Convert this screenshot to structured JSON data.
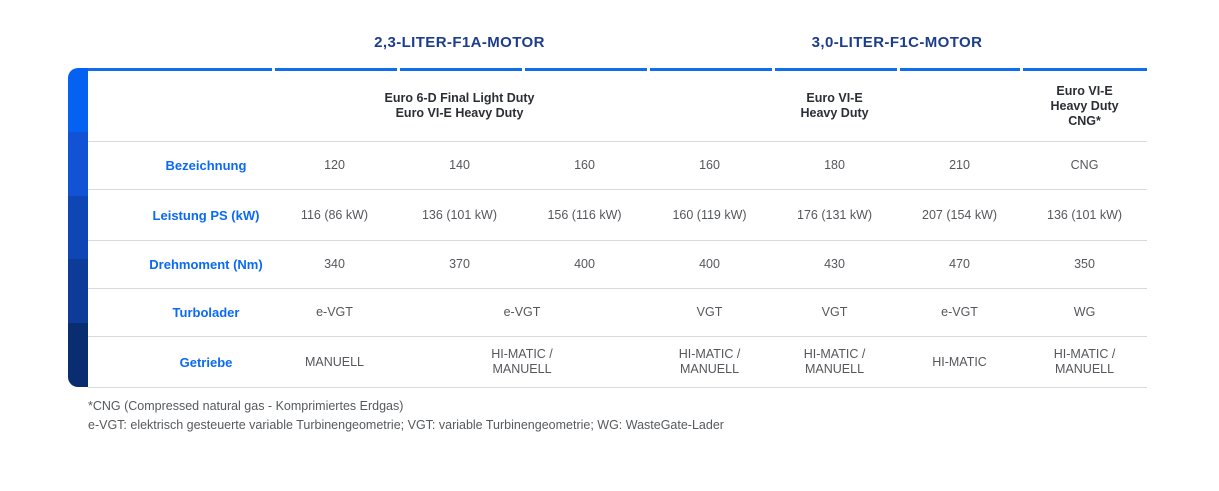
{
  "colors": {
    "accent_blue_border": "#116df0",
    "engine_title_navy": "#1c3c8c",
    "row_label_blue": "#0a6af2",
    "data_text_gray": "#55575b",
    "divider_gray": "#d9d9d9",
    "bar_segments": [
      "#0561f1",
      "#1252d4",
      "#0e46b6",
      "#0c3b99",
      "#0a2c70"
    ]
  },
  "chart_data": {
    "type": "table",
    "engine_groups": [
      "2,3-LITER-F1A-MOTOR",
      "3,0-LITER-F1C-MOTOR"
    ],
    "column_groups": [
      {
        "label": "Euro 6-D Final Light Duty\nEuro VI-E Heavy Duty",
        "span": 3
      },
      {
        "label": "Euro VI-E\nHeavy Duty",
        "span": 3
      },
      {
        "label": "Euro VI-E\nHeavy Duty\nCNG*",
        "span": 1
      }
    ],
    "rows": [
      {
        "label": "Bezeichnung",
        "cells": [
          {
            "text": "120",
            "span": 1
          },
          {
            "text": "140",
            "span": 1
          },
          {
            "text": "160",
            "span": 1
          },
          {
            "text": "160",
            "span": 1
          },
          {
            "text": "180",
            "span": 1
          },
          {
            "text": "210",
            "span": 1
          },
          {
            "text": "CNG",
            "span": 1
          }
        ]
      },
      {
        "label": "Leistung PS (kW)",
        "cells": [
          {
            "text": "116 (86 kW)",
            "span": 1
          },
          {
            "text": "136 (101 kW)",
            "span": 1
          },
          {
            "text": "156 (116 kW)",
            "span": 1
          },
          {
            "text": "160 (119 kW)",
            "span": 1
          },
          {
            "text": "176 (131 kW)",
            "span": 1
          },
          {
            "text": "207 (154 kW)",
            "span": 1
          },
          {
            "text": "136 (101 kW)",
            "span": 1
          }
        ]
      },
      {
        "label": "Drehmoment (Nm)",
        "cells": [
          {
            "text": "340",
            "span": 1
          },
          {
            "text": "370",
            "span": 1
          },
          {
            "text": "400",
            "span": 1
          },
          {
            "text": "400",
            "span": 1
          },
          {
            "text": "430",
            "span": 1
          },
          {
            "text": "470",
            "span": 1
          },
          {
            "text": "350",
            "span": 1
          }
        ]
      },
      {
        "label": "Turbolader",
        "cells": [
          {
            "text": "e-VGT",
            "span": 1
          },
          {
            "text": "e-VGT",
            "span": 2
          },
          {
            "text": "VGT",
            "span": 1
          },
          {
            "text": "VGT",
            "span": 1
          },
          {
            "text": "e-VGT",
            "span": 1
          },
          {
            "text": "WG",
            "span": 1
          }
        ]
      },
      {
        "label": "Getriebe",
        "cells": [
          {
            "text": "MANUELL",
            "span": 1
          },
          {
            "text": "HI-MATIC /\nMANUELL",
            "span": 2
          },
          {
            "text": "HI-MATIC /\nMANUELL",
            "span": 1
          },
          {
            "text": "HI-MATIC /\nMANUELL",
            "span": 1
          },
          {
            "text": "HI-MATIC",
            "span": 1
          },
          {
            "text": "HI-MATIC /\nMANUELL",
            "span": 1
          }
        ]
      }
    ],
    "footnotes": [
      "*CNG (Compressed natural gas - Komprimiertes Erdgas)",
      "e-VGT: elektrisch gesteuerte variable Turbinengeometrie; VGT: variable Turbinengeometrie; WG: WasteGate-Lader"
    ]
  }
}
